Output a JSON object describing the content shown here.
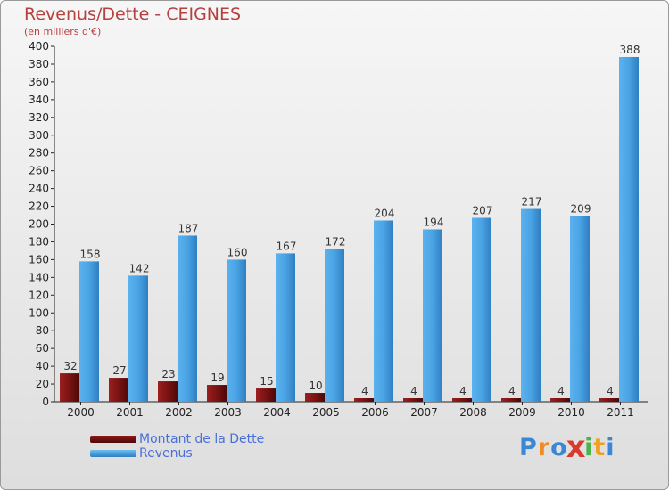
{
  "header": {
    "title": "Revenus/Dette - CEIGNES",
    "subtitle": "(en milliers d'€)"
  },
  "chart_data": {
    "type": "bar",
    "title": "Revenus/Dette - CEIGNES",
    "ylabel": "(en milliers d'€)",
    "xlabel": "",
    "ylim": [
      0,
      400
    ],
    "ytick_step": 20,
    "grid": false,
    "legend_position": "bottom-left",
    "categories": [
      "2000",
      "2001",
      "2002",
      "2003",
      "2004",
      "2005",
      "2006",
      "2007",
      "2008",
      "2009",
      "2010",
      "2011"
    ],
    "series": [
      {
        "name": "Montant de la Dette",
        "color": "#8b1a1a",
        "values": [
          32,
          27,
          23,
          19,
          15,
          10,
          4,
          4,
          4,
          4,
          4,
          4
        ]
      },
      {
        "name": "Revenus",
        "color": "#4da3e2",
        "values": [
          158,
          142,
          187,
          160,
          167,
          172,
          204,
          194,
          207,
          217,
          209,
          388
        ]
      }
    ]
  },
  "legend": {
    "items": [
      {
        "label": "Montant de la Dette",
        "color": "#6b0f0f"
      },
      {
        "label": "Revenus",
        "color": "#4da3e2"
      }
    ]
  },
  "brand": {
    "letters": [
      "P",
      "r",
      "o",
      "x",
      "i",
      "t",
      "i"
    ],
    "colors": [
      "#3b87d6",
      "#f08a24",
      "#3b87d6",
      "#d83a2e",
      "#4ab34a",
      "#f0a020",
      "#3b87d6"
    ]
  }
}
